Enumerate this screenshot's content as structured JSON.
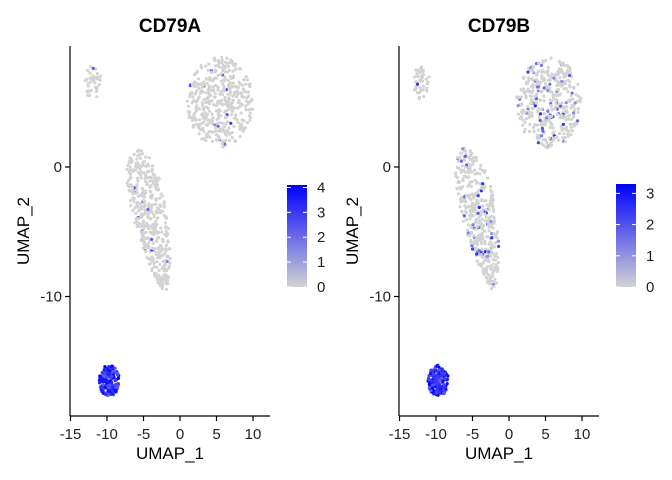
{
  "chart_data": [
    {
      "type": "scatter",
      "title": "CD79A",
      "xlabel": "UMAP_1",
      "ylabel": "UMAP_2",
      "xlim": [
        -15.5,
        12.5
      ],
      "ylim": [
        -19.5,
        9.5
      ],
      "x_ticks": [
        -15,
        -10,
        -5,
        0,
        5,
        10
      ],
      "y_ticks": [
        0,
        -10
      ],
      "grid": false,
      "legend": {
        "placement": "right",
        "type": "colorbar",
        "min": 0,
        "max": 4.1,
        "ticks": [
          4,
          3,
          2,
          1,
          0
        ],
        "low_color": "#d3d3d3",
        "high_color": "#0000ff"
      },
      "clusters": [
        {
          "cells": "small top-left cluster",
          "x": -12,
          "y": 6.5,
          "rx": 1.2,
          "ry": 1.3,
          "expression": "low"
        },
        {
          "cells": "large top-right cluster",
          "x": 5.5,
          "y": 5,
          "rx": 4.5,
          "ry": 3.5,
          "expression": "low"
        },
        {
          "cells": "middle elongated cluster",
          "x": -4,
          "y": -4,
          "rx": 3,
          "ry": 5.5,
          "expression": "low"
        },
        {
          "cells": "bottom-left B-cell cluster",
          "x": -9.7,
          "y": -16.5,
          "rx": 1.4,
          "ry": 1.2,
          "expression": "high"
        }
      ]
    },
    {
      "type": "scatter",
      "title": "CD79B",
      "xlabel": "UMAP_1",
      "ylabel": "UMAP_2",
      "xlim": [
        -15.5,
        12.5
      ],
      "ylim": [
        -19.5,
        9.5
      ],
      "x_ticks": [
        -15,
        -10,
        -5,
        0,
        5,
        10
      ],
      "y_ticks": [
        0,
        -10
      ],
      "grid": false,
      "legend": {
        "placement": "right",
        "type": "colorbar",
        "min": 0,
        "max": 3.3,
        "ticks": [
          3,
          2,
          1,
          0
        ],
        "low_color": "#d3d3d3",
        "high_color": "#0000ff"
      },
      "clusters": [
        {
          "cells": "small top-left cluster",
          "x": -12,
          "y": 6.5,
          "rx": 1.2,
          "ry": 1.3,
          "expression": "low"
        },
        {
          "cells": "large top-right cluster",
          "x": 5.5,
          "y": 5,
          "rx": 4.5,
          "ry": 3.5,
          "expression": "low-moderate"
        },
        {
          "cells": "middle elongated cluster",
          "x": -4,
          "y": -4,
          "rx": 3,
          "ry": 5.5,
          "expression": "low-moderate"
        },
        {
          "cells": "bottom-left B-cell cluster",
          "x": -9.7,
          "y": -16.5,
          "rx": 1.4,
          "ry": 1.2,
          "expression": "high"
        }
      ]
    }
  ]
}
